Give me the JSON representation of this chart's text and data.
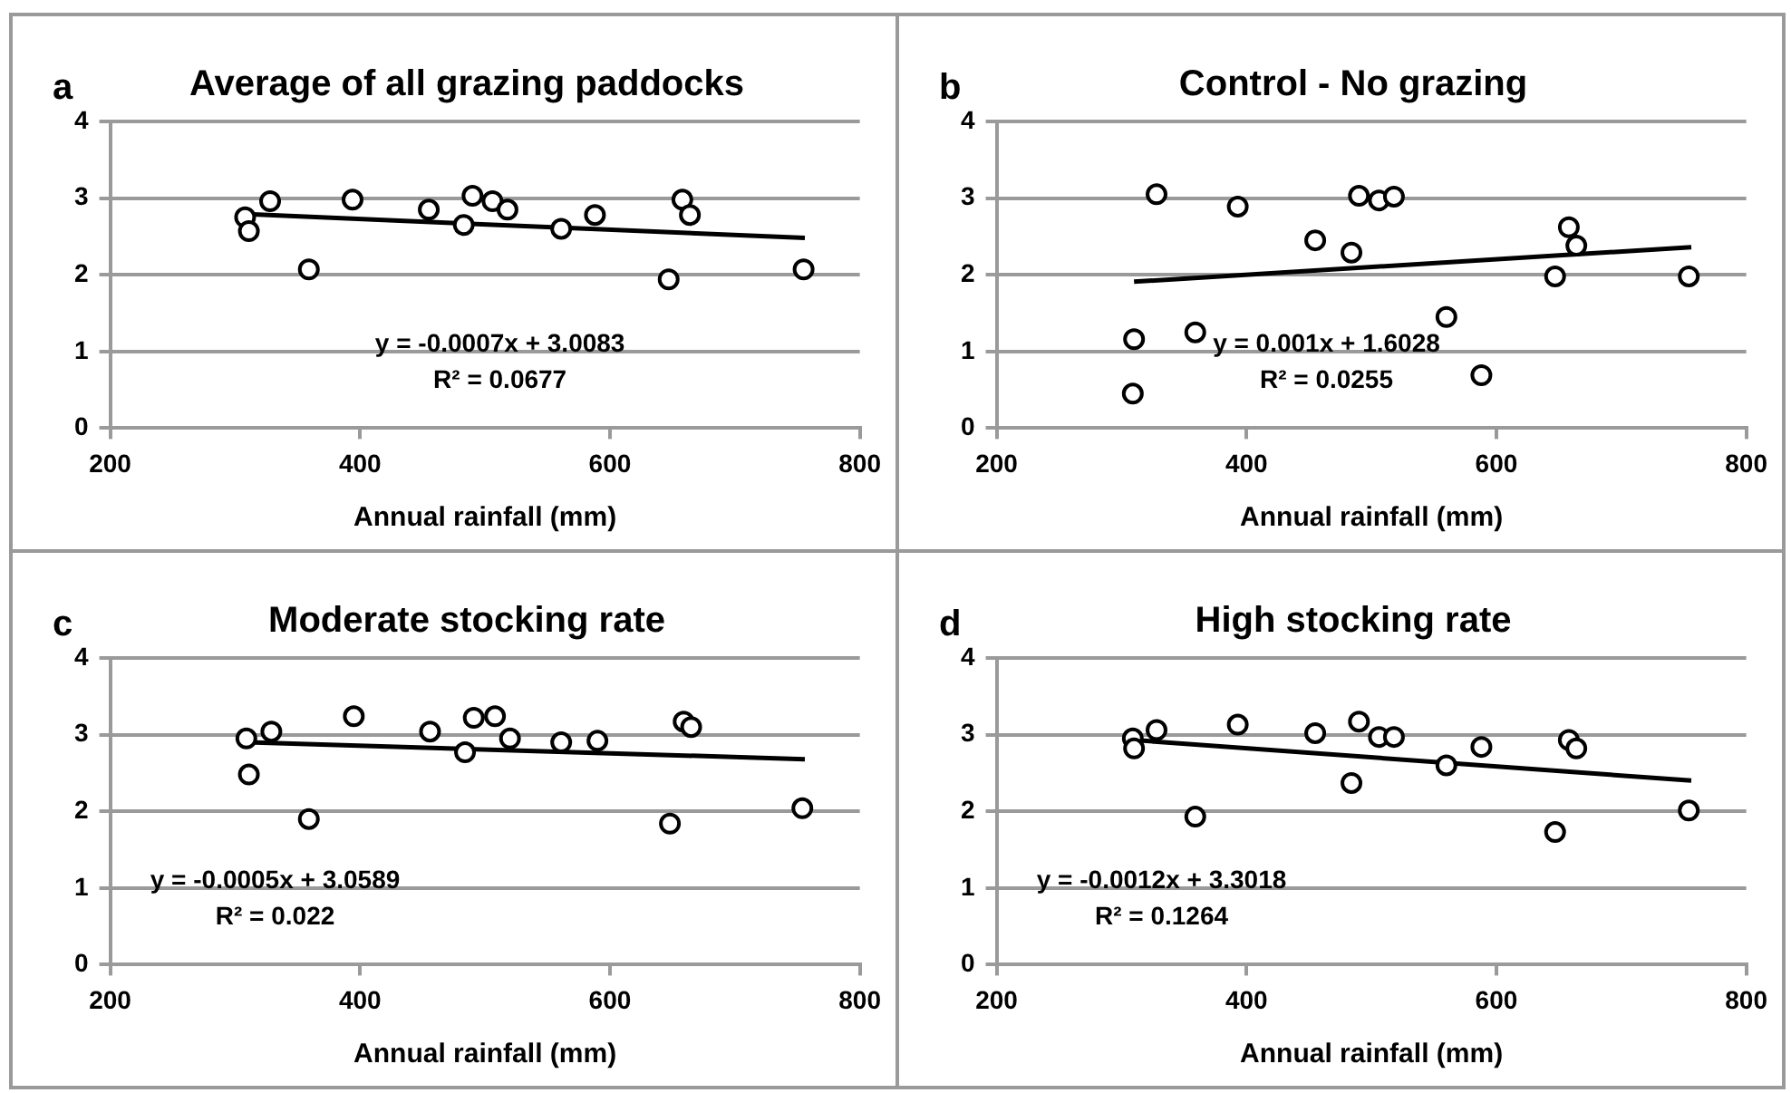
{
  "chart_data": [
    {
      "type": "scatter",
      "title": "Average of all grazing paddocks",
      "xlabel": "Annual rainfall (mm)",
      "xlim": [
        200,
        800
      ],
      "xticks": [
        200,
        400,
        600,
        800
      ],
      "ylim": [
        0,
        4
      ],
      "yticks": [
        0,
        1,
        2,
        3,
        4
      ],
      "grid": "y",
      "annotations": [
        "a",
        "y = -0.0007x + 3.0083",
        "R² = 0.0677"
      ],
      "series": [
        {
          "type": "scatter",
          "marker": "circle",
          "color": "#000000",
          "x": [
            308,
            311,
            328,
            359,
            394,
            455,
            483,
            490,
            506,
            518,
            561,
            588,
            647,
            658,
            664,
            755
          ],
          "values": [
            2.75,
            2.57,
            2.96,
            2.07,
            2.98,
            2.85,
            2.65,
            3.03,
            2.96,
            2.85,
            2.6,
            2.78,
            1.94,
            2.98,
            2.78,
            2.07
          ]
        },
        {
          "type": "line",
          "marker": "none",
          "color": "#000000",
          "x": [
            310,
            756
          ],
          "values": [
            2.79,
            2.48
          ]
        }
      ]
    },
    {
      "type": "scatter",
      "title": "Control - No grazing",
      "xlabel": "Annual rainfall (mm)",
      "xlim": [
        200,
        800
      ],
      "xticks": [
        200,
        400,
        600,
        800
      ],
      "ylim": [
        0,
        4
      ],
      "yticks": [
        0,
        1,
        2,
        3,
        4
      ],
      "grid": "y",
      "annotations": [
        "b",
        "y = 0.001x + 1.6028",
        "R² = 0.0255"
      ],
      "series": [
        {
          "type": "scatter",
          "marker": "circle",
          "color": "#000000",
          "x": [
            309,
            310,
            328,
            359,
            393,
            455,
            484,
            490,
            506,
            518,
            560,
            588,
            647,
            658,
            664,
            754
          ],
          "values": [
            0.45,
            1.16,
            3.05,
            1.25,
            2.89,
            2.45,
            2.29,
            3.03,
            2.97,
            3.02,
            1.45,
            0.69,
            1.98,
            2.62,
            2.38,
            1.98
          ]
        },
        {
          "type": "line",
          "marker": "none",
          "color": "#000000",
          "x": [
            310,
            756
          ],
          "values": [
            1.91,
            2.36
          ]
        }
      ]
    },
    {
      "type": "scatter",
      "title": "Moderate stocking rate",
      "xlabel": "Annual rainfall (mm)",
      "xlim": [
        200,
        800
      ],
      "xticks": [
        200,
        400,
        600,
        800
      ],
      "ylim": [
        0,
        4
      ],
      "yticks": [
        0,
        1,
        2,
        3,
        4
      ],
      "grid": "y",
      "annotations": [
        "c",
        "y = -0.0005x + 3.0589",
        "R² = 0.022"
      ],
      "series": [
        {
          "type": "scatter",
          "marker": "circle",
          "color": "#000000",
          "x": [
            309,
            311,
            329,
            359,
            395,
            456,
            484,
            491,
            508,
            520,
            561,
            590,
            648,
            659,
            665,
            754
          ],
          "values": [
            2.95,
            2.48,
            3.04,
            1.9,
            3.24,
            3.04,
            2.77,
            3.22,
            3.24,
            2.95,
            2.9,
            2.92,
            1.84,
            3.17,
            3.1,
            2.04
          ]
        },
        {
          "type": "line",
          "marker": "none",
          "color": "#000000",
          "x": [
            310,
            756
          ],
          "values": [
            2.9,
            2.68
          ]
        }
      ]
    },
    {
      "type": "scatter",
      "title": "High stocking rate",
      "xlabel": "Annual rainfall (mm)",
      "xlim": [
        200,
        800
      ],
      "xticks": [
        200,
        400,
        600,
        800
      ],
      "ylim": [
        0,
        4
      ],
      "yticks": [
        0,
        1,
        2,
        3,
        4
      ],
      "grid": "y",
      "annotations": [
        "d",
        "y = -0.0012x + 3.3018",
        "R² = 0.1264"
      ],
      "series": [
        {
          "type": "scatter",
          "marker": "circle",
          "color": "#000000",
          "x": [
            309,
            310,
            328,
            359,
            393,
            455,
            484,
            490,
            506,
            518,
            560,
            588,
            647,
            658,
            664,
            754
          ],
          "values": [
            2.95,
            2.82,
            3.06,
            1.93,
            3.13,
            3.02,
            2.37,
            3.17,
            2.97,
            2.97,
            2.6,
            2.84,
            1.73,
            2.93,
            2.82,
            2.01
          ]
        },
        {
          "type": "line",
          "marker": "none",
          "color": "#000000",
          "x": [
            310,
            756
          ],
          "values": [
            2.93,
            2.4
          ]
        }
      ]
    }
  ]
}
